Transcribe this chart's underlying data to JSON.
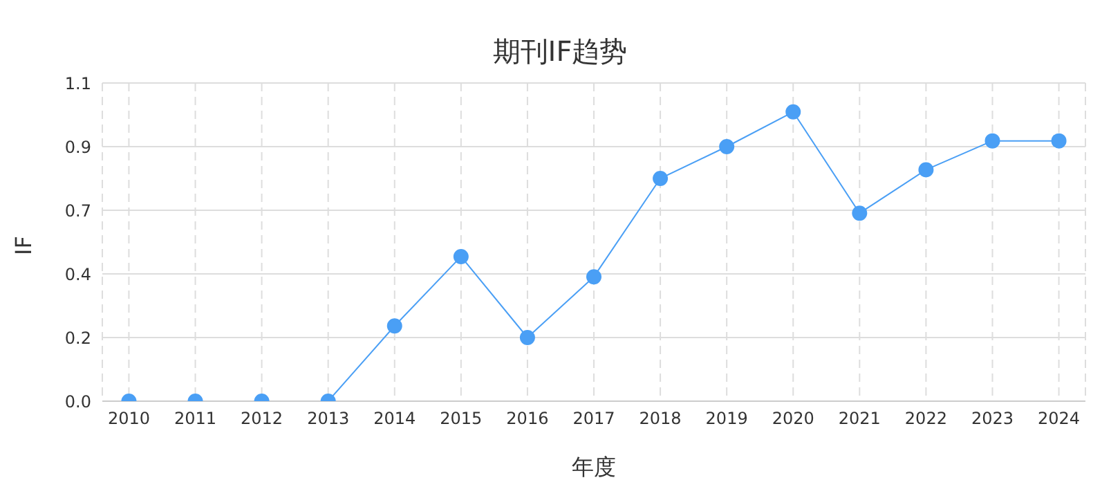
{
  "chart_data": {
    "type": "line",
    "title": "期刊IF趋势",
    "xlabel": "年度",
    "ylabel": "IF",
    "categories": [
      "2010",
      "2011",
      "2012",
      "2013",
      "2014",
      "2015",
      "2016",
      "2017",
      "2018",
      "2019",
      "2020",
      "2021",
      "2022",
      "2023",
      "2024"
    ],
    "series": [
      {
        "color": "#4a9ff5",
        "values": [
          0,
          0,
          0,
          0,
          0.26,
          0.5,
          0.22,
          0.43,
          0.77,
          0.88,
          1.0,
          0.65,
          0.8,
          0.9,
          0.9
        ]
      }
    ],
    "ylim": [
      0,
      1.1
    ],
    "yticks": [
      {
        "value": 0,
        "label": "0.0"
      },
      {
        "value": 0.22,
        "label": "0.2"
      },
      {
        "value": 0.44,
        "label": "0.4"
      },
      {
        "value": 0.66,
        "label": "0.7"
      },
      {
        "value": 0.88,
        "label": "0.9"
      },
      {
        "value": 1.1,
        "label": "1.1"
      }
    ],
    "grid": true,
    "marker": "circle",
    "line_style": "solid",
    "legend": false
  }
}
